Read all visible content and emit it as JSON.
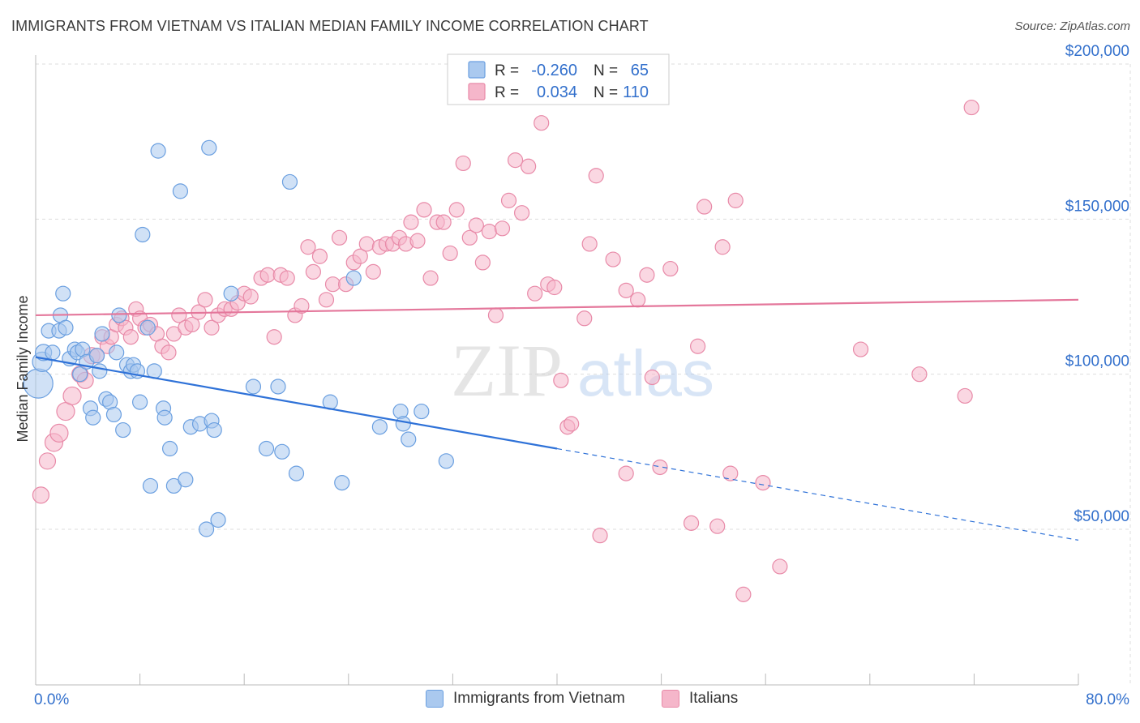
{
  "title": "IMMIGRANTS FROM VIETNAM VS ITALIAN MEDIAN FAMILY INCOME CORRELATION CHART",
  "source": "Source: ZipAtlas.com",
  "watermark": {
    "zip": "ZIP",
    "atlas": "atlas"
  },
  "colors": {
    "blue_fill": "#aac9ef",
    "blue_stroke": "#6a9fe0",
    "blue_line": "#2f72d8",
    "pink_fill": "#f5b6ca",
    "pink_stroke": "#e88aa8",
    "pink_line": "#e4779b",
    "axis_text": "#3370cc",
    "grid": "#dddddd"
  },
  "legend": {
    "rows": [
      {
        "r_label": "R =",
        "r_value": "-0.260",
        "n_label": "N =",
        "n_value": "65"
      },
      {
        "r_label": "R =",
        "r_value": "0.034",
        "n_label": "N =",
        "n_value": "110"
      }
    ]
  },
  "bottom_legend": {
    "series1": "Immigrants from Vietnam",
    "series2": "Italians"
  },
  "chart_data": {
    "type": "scatter",
    "title": "IMMIGRANTS FROM VIETNAM VS ITALIAN MEDIAN FAMILY INCOME CORRELATION CHART",
    "xlabel": "",
    "ylabel": "Median Family Income",
    "xlim": [
      0,
      80
    ],
    "ylim": [
      0,
      210000
    ],
    "x_tick_labels": [
      "0.0%",
      "80.0%"
    ],
    "y_ticks": [
      50000,
      100000,
      150000,
      200000
    ],
    "y_tick_labels": [
      "$50,000",
      "$100,000",
      "$150,000",
      "$200,000"
    ],
    "series": [
      {
        "name": "Immigrants from Vietnam",
        "color": "blue",
        "trend": {
          "x0": 0,
          "y0": 105500,
          "x1": 40,
          "y1": 76000,
          "dash_to_x": 80,
          "dash_to_y": 46500
        },
        "points": [
          {
            "x": 0.2,
            "y": 97000,
            "s": 18
          },
          {
            "x": 0.5,
            "y": 104000,
            "s": 12
          },
          {
            "x": 0.6,
            "y": 107000,
            "s": 10
          },
          {
            "x": 1.0,
            "y": 114000,
            "s": 9
          },
          {
            "x": 1.3,
            "y": 107000,
            "s": 9
          },
          {
            "x": 1.8,
            "y": 114000,
            "s": 9
          },
          {
            "x": 1.9,
            "y": 119000,
            "s": 9
          },
          {
            "x": 2.1,
            "y": 126000,
            "s": 9
          },
          {
            "x": 2.3,
            "y": 115000,
            "s": 9
          },
          {
            "x": 2.6,
            "y": 105000,
            "s": 9
          },
          {
            "x": 3.0,
            "y": 108000,
            "s": 9
          },
          {
            "x": 3.2,
            "y": 107000,
            "s": 9
          },
          {
            "x": 3.4,
            "y": 100000,
            "s": 9
          },
          {
            "x": 3.6,
            "y": 108000,
            "s": 9
          },
          {
            "x": 3.9,
            "y": 104000,
            "s": 9
          },
          {
            "x": 4.2,
            "y": 89000,
            "s": 9
          },
          {
            "x": 4.4,
            "y": 86000,
            "s": 9
          },
          {
            "x": 4.7,
            "y": 106000,
            "s": 9
          },
          {
            "x": 4.9,
            "y": 101000,
            "s": 9
          },
          {
            "x": 5.1,
            "y": 113000,
            "s": 9
          },
          {
            "x": 5.4,
            "y": 92000,
            "s": 9
          },
          {
            "x": 5.7,
            "y": 91000,
            "s": 9
          },
          {
            "x": 6.0,
            "y": 87000,
            "s": 9
          },
          {
            "x": 6.2,
            "y": 107000,
            "s": 9
          },
          {
            "x": 6.4,
            "y": 119000,
            "s": 9
          },
          {
            "x": 6.7,
            "y": 82000,
            "s": 9
          },
          {
            "x": 7.0,
            "y": 103000,
            "s": 9
          },
          {
            "x": 7.3,
            "y": 101000,
            "s": 9
          },
          {
            "x": 7.5,
            "y": 103000,
            "s": 9
          },
          {
            "x": 7.8,
            "y": 101000,
            "s": 9
          },
          {
            "x": 8.0,
            "y": 91000,
            "s": 9
          },
          {
            "x": 8.2,
            "y": 145000,
            "s": 9
          },
          {
            "x": 8.6,
            "y": 115000,
            "s": 9
          },
          {
            "x": 8.8,
            "y": 64000,
            "s": 9
          },
          {
            "x": 9.1,
            "y": 101000,
            "s": 9
          },
          {
            "x": 9.4,
            "y": 172000,
            "s": 9
          },
          {
            "x": 9.8,
            "y": 89000,
            "s": 9
          },
          {
            "x": 9.9,
            "y": 86000,
            "s": 9
          },
          {
            "x": 10.3,
            "y": 76000,
            "s": 9
          },
          {
            "x": 10.6,
            "y": 64000,
            "s": 9
          },
          {
            "x": 11.1,
            "y": 159000,
            "s": 9
          },
          {
            "x": 11.5,
            "y": 66000,
            "s": 9
          },
          {
            "x": 11.9,
            "y": 83000,
            "s": 9
          },
          {
            "x": 12.6,
            "y": 84000,
            "s": 9
          },
          {
            "x": 13.1,
            "y": 50000,
            "s": 9
          },
          {
            "x": 13.3,
            "y": 173000,
            "s": 9
          },
          {
            "x": 13.5,
            "y": 85000,
            "s": 9
          },
          {
            "x": 13.7,
            "y": 82000,
            "s": 9
          },
          {
            "x": 14.0,
            "y": 53000,
            "s": 9
          },
          {
            "x": 15.0,
            "y": 126000,
            "s": 9
          },
          {
            "x": 16.7,
            "y": 96000,
            "s": 9
          },
          {
            "x": 17.7,
            "y": 76000,
            "s": 9
          },
          {
            "x": 18.6,
            "y": 96000,
            "s": 9
          },
          {
            "x": 18.9,
            "y": 75000,
            "s": 9
          },
          {
            "x": 19.5,
            "y": 162000,
            "s": 9
          },
          {
            "x": 20.0,
            "y": 68000,
            "s": 9
          },
          {
            "x": 22.6,
            "y": 91000,
            "s": 9
          },
          {
            "x": 23.5,
            "y": 65000,
            "s": 9
          },
          {
            "x": 24.4,
            "y": 131000,
            "s": 9
          },
          {
            "x": 26.4,
            "y": 83000,
            "s": 9
          },
          {
            "x": 28.0,
            "y": 88000,
            "s": 9
          },
          {
            "x": 28.2,
            "y": 84000,
            "s": 9
          },
          {
            "x": 28.6,
            "y": 79000,
            "s": 9
          },
          {
            "x": 29.6,
            "y": 88000,
            "s": 9
          },
          {
            "x": 31.5,
            "y": 72000,
            "s": 9
          }
        ]
      },
      {
        "name": "Italians",
        "color": "pink",
        "trend": {
          "x0": 0,
          "y0": 119000,
          "x1": 80,
          "y1": 124000
        },
        "points": [
          {
            "x": 0.4,
            "y": 61000,
            "s": 10
          },
          {
            "x": 0.9,
            "y": 72000,
            "s": 10
          },
          {
            "x": 1.4,
            "y": 78000,
            "s": 11
          },
          {
            "x": 1.8,
            "y": 81000,
            "s": 11
          },
          {
            "x": 2.3,
            "y": 88000,
            "s": 11
          },
          {
            "x": 2.8,
            "y": 93000,
            "s": 11
          },
          {
            "x": 3.4,
            "y": 100000,
            "s": 10
          },
          {
            "x": 3.8,
            "y": 98000,
            "s": 10
          },
          {
            "x": 4.3,
            "y": 106000,
            "s": 10
          },
          {
            "x": 4.7,
            "y": 106000,
            "s": 9
          },
          {
            "x": 5.1,
            "y": 112000,
            "s": 9
          },
          {
            "x": 5.5,
            "y": 109000,
            "s": 9
          },
          {
            "x": 5.8,
            "y": 112000,
            "s": 9
          },
          {
            "x": 6.2,
            "y": 116000,
            "s": 9
          },
          {
            "x": 6.6,
            "y": 118000,
            "s": 9
          },
          {
            "x": 6.9,
            "y": 115000,
            "s": 9
          },
          {
            "x": 7.3,
            "y": 112000,
            "s": 9
          },
          {
            "x": 7.7,
            "y": 121000,
            "s": 9
          },
          {
            "x": 8.0,
            "y": 118000,
            "s": 9
          },
          {
            "x": 8.4,
            "y": 115000,
            "s": 9
          },
          {
            "x": 8.8,
            "y": 116000,
            "s": 9
          },
          {
            "x": 9.3,
            "y": 113000,
            "s": 9
          },
          {
            "x": 9.7,
            "y": 109000,
            "s": 9
          },
          {
            "x": 10.2,
            "y": 107000,
            "s": 9
          },
          {
            "x": 10.6,
            "y": 113000,
            "s": 9
          },
          {
            "x": 11.0,
            "y": 119000,
            "s": 9
          },
          {
            "x": 11.5,
            "y": 115000,
            "s": 9
          },
          {
            "x": 12.0,
            "y": 116000,
            "s": 9
          },
          {
            "x": 12.5,
            "y": 120000,
            "s": 9
          },
          {
            "x": 13.0,
            "y": 124000,
            "s": 9
          },
          {
            "x": 13.5,
            "y": 115000,
            "s": 9
          },
          {
            "x": 14.0,
            "y": 119000,
            "s": 9
          },
          {
            "x": 14.5,
            "y": 121000,
            "s": 9
          },
          {
            "x": 15.0,
            "y": 121000,
            "s": 9
          },
          {
            "x": 15.5,
            "y": 123000,
            "s": 9
          },
          {
            "x": 16.0,
            "y": 126000,
            "s": 9
          },
          {
            "x": 16.5,
            "y": 125000,
            "s": 9
          },
          {
            "x": 17.3,
            "y": 131000,
            "s": 9
          },
          {
            "x": 17.8,
            "y": 132000,
            "s": 9
          },
          {
            "x": 18.3,
            "y": 112000,
            "s": 9
          },
          {
            "x": 18.8,
            "y": 132000,
            "s": 9
          },
          {
            "x": 19.3,
            "y": 131000,
            "s": 9
          },
          {
            "x": 19.9,
            "y": 119000,
            "s": 9
          },
          {
            "x": 20.4,
            "y": 122000,
            "s": 9
          },
          {
            "x": 20.9,
            "y": 141000,
            "s": 9
          },
          {
            "x": 21.3,
            "y": 133000,
            "s": 9
          },
          {
            "x": 21.8,
            "y": 138000,
            "s": 9
          },
          {
            "x": 22.3,
            "y": 124000,
            "s": 9
          },
          {
            "x": 22.8,
            "y": 129000,
            "s": 9
          },
          {
            "x": 23.3,
            "y": 144000,
            "s": 9
          },
          {
            "x": 23.8,
            "y": 129000,
            "s": 9
          },
          {
            "x": 24.4,
            "y": 136000,
            "s": 9
          },
          {
            "x": 24.9,
            "y": 138000,
            "s": 9
          },
          {
            "x": 25.4,
            "y": 142000,
            "s": 9
          },
          {
            "x": 25.9,
            "y": 133000,
            "s": 9
          },
          {
            "x": 26.4,
            "y": 141000,
            "s": 9
          },
          {
            "x": 26.9,
            "y": 142000,
            "s": 9
          },
          {
            "x": 27.4,
            "y": 142000,
            "s": 9
          },
          {
            "x": 27.9,
            "y": 144000,
            "s": 9
          },
          {
            "x": 28.4,
            "y": 142000,
            "s": 9
          },
          {
            "x": 28.8,
            "y": 149000,
            "s": 9
          },
          {
            "x": 29.3,
            "y": 143000,
            "s": 9
          },
          {
            "x": 29.8,
            "y": 153000,
            "s": 9
          },
          {
            "x": 30.3,
            "y": 131000,
            "s": 9
          },
          {
            "x": 30.8,
            "y": 149000,
            "s": 9
          },
          {
            "x": 31.3,
            "y": 149000,
            "s": 9
          },
          {
            "x": 31.8,
            "y": 139000,
            "s": 9
          },
          {
            "x": 32.3,
            "y": 153000,
            "s": 9
          },
          {
            "x": 32.8,
            "y": 168000,
            "s": 9
          },
          {
            "x": 33.3,
            "y": 144000,
            "s": 9
          },
          {
            "x": 33.8,
            "y": 148000,
            "s": 9
          },
          {
            "x": 34.3,
            "y": 136000,
            "s": 9
          },
          {
            "x": 34.8,
            "y": 146000,
            "s": 9
          },
          {
            "x": 35.3,
            "y": 119000,
            "s": 9
          },
          {
            "x": 35.8,
            "y": 147000,
            "s": 9
          },
          {
            "x": 36.3,
            "y": 156000,
            "s": 9
          },
          {
            "x": 36.8,
            "y": 169000,
            "s": 9
          },
          {
            "x": 37.3,
            "y": 152000,
            "s": 9
          },
          {
            "x": 37.8,
            "y": 167000,
            "s": 9
          },
          {
            "x": 38.3,
            "y": 126000,
            "s": 9
          },
          {
            "x": 38.8,
            "y": 181000,
            "s": 9
          },
          {
            "x": 39.3,
            "y": 129000,
            "s": 9
          },
          {
            "x": 39.8,
            "y": 128000,
            "s": 9
          },
          {
            "x": 40.3,
            "y": 98000,
            "s": 9
          },
          {
            "x": 40.8,
            "y": 83000,
            "s": 9
          },
          {
            "x": 41.1,
            "y": 84000,
            "s": 9
          },
          {
            "x": 42.1,
            "y": 118000,
            "s": 9
          },
          {
            "x": 42.5,
            "y": 142000,
            "s": 9
          },
          {
            "x": 43.0,
            "y": 164000,
            "s": 9
          },
          {
            "x": 43.3,
            "y": 48000,
            "s": 9
          },
          {
            "x": 44.3,
            "y": 137000,
            "s": 9
          },
          {
            "x": 45.3,
            "y": 68000,
            "s": 9
          },
          {
            "x": 45.3,
            "y": 127000,
            "s": 9
          },
          {
            "x": 46.2,
            "y": 124000,
            "s": 9
          },
          {
            "x": 46.9,
            "y": 132000,
            "s": 9
          },
          {
            "x": 47.3,
            "y": 99000,
            "s": 9
          },
          {
            "x": 47.9,
            "y": 70000,
            "s": 9
          },
          {
            "x": 48.7,
            "y": 134000,
            "s": 9
          },
          {
            "x": 50.3,
            "y": 52000,
            "s": 9
          },
          {
            "x": 50.8,
            "y": 109000,
            "s": 9
          },
          {
            "x": 51.3,
            "y": 154000,
            "s": 9
          },
          {
            "x": 52.3,
            "y": 51000,
            "s": 9
          },
          {
            "x": 52.7,
            "y": 141000,
            "s": 9
          },
          {
            "x": 53.3,
            "y": 68000,
            "s": 9
          },
          {
            "x": 53.7,
            "y": 156000,
            "s": 9
          },
          {
            "x": 54.3,
            "y": 29000,
            "s": 9
          },
          {
            "x": 55.8,
            "y": 65000,
            "s": 9
          },
          {
            "x": 57.1,
            "y": 38000,
            "s": 9
          },
          {
            "x": 63.3,
            "y": 108000,
            "s": 9
          },
          {
            "x": 67.8,
            "y": 100000,
            "s": 9
          },
          {
            "x": 71.3,
            "y": 93000,
            "s": 9
          },
          {
            "x": 71.8,
            "y": 186000,
            "s": 9
          }
        ]
      }
    ]
  }
}
